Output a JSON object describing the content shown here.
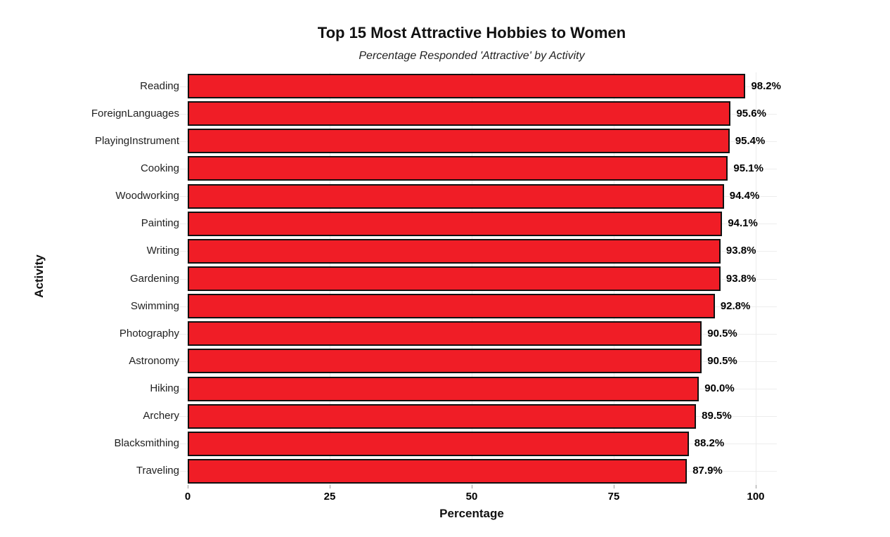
{
  "chart_data": {
    "type": "bar",
    "orientation": "horizontal",
    "title": "Top 15 Most Attractive Hobbies to Women",
    "subtitle": "Percentage Responded 'Attractive' by Activity",
    "xlabel": "Percentage",
    "ylabel": "Activity",
    "categories": [
      "Reading",
      "ForeignLanguages",
      "PlayingInstrument",
      "Cooking",
      "Woodworking",
      "Painting",
      "Writing",
      "Gardening",
      "Swimming",
      "Photography",
      "Astronomy",
      "Hiking",
      "Archery",
      "Blacksmithing",
      "Traveling"
    ],
    "values": [
      98.2,
      95.6,
      95.4,
      95.1,
      94.4,
      94.1,
      93.8,
      93.8,
      92.8,
      90.5,
      90.5,
      90.0,
      89.5,
      88.2,
      87.9
    ],
    "value_labels": [
      "98.2%",
      "95.6%",
      "95.4%",
      "95.1%",
      "94.4%",
      "94.1%",
      "93.8%",
      "93.8%",
      "92.8%",
      "90.5%",
      "90.5%",
      "90.0%",
      "89.5%",
      "88.2%",
      "87.9%"
    ],
    "xlim": [
      0,
      100
    ],
    "xticks": [
      0,
      25,
      50,
      75,
      100
    ],
    "grid": true,
    "legend": "none",
    "colors": {
      "bar_fill": "#F01D26",
      "bar_border": "#111111",
      "gridline": "#ededed",
      "background": "#ffffff",
      "text": "#111111"
    }
  }
}
